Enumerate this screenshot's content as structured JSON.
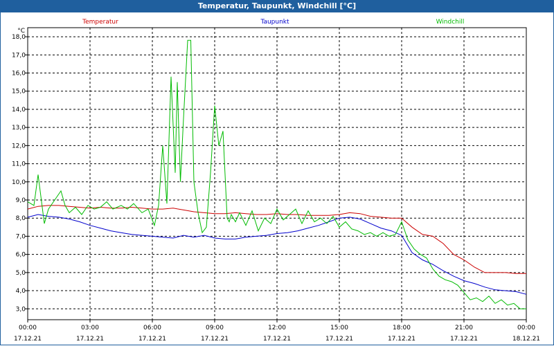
{
  "window_title": "Temperatur, Taupunkt, Windchill [°C]",
  "chart_data": {
    "type": "line",
    "title": "Temperatur, Taupunkt, Windchill [°C]",
    "ylabel": "°C",
    "xlabel": "",
    "ylim": [
      2.4,
      18.5
    ],
    "xlim": [
      0,
      24
    ],
    "grid": true,
    "y_ticks": [
      3,
      4,
      5,
      6,
      7,
      8,
      9,
      10,
      11,
      12,
      13,
      14,
      15,
      16,
      17,
      18
    ],
    "y_tick_labels": [
      "3,0",
      "4,0",
      "5,0",
      "6,0",
      "7,0",
      "8,0",
      "9,0",
      "10,0",
      "11,0",
      "12,0",
      "13,0",
      "14,0",
      "15,0",
      "16,0",
      "17,0",
      "18,0"
    ],
    "x_ticks": [
      0,
      3,
      6,
      9,
      12,
      15,
      18,
      21,
      24
    ],
    "x_tick_times": [
      "00:00",
      "03:00",
      "06:00",
      "09:00",
      "12:00",
      "15:00",
      "18:00",
      "21:00",
      "00:00"
    ],
    "x_tick_dates": [
      "17.12.21",
      "17.12.21",
      "17.12.21",
      "17.12.21",
      "17.12.21",
      "17.12.21",
      "17.12.21",
      "17.12.21",
      "18.12.21"
    ],
    "series": [
      {
        "name": "Temperatur",
        "color": "#cc0000",
        "x": [
          0,
          0.5,
          1,
          1.5,
          2,
          2.5,
          3,
          3.5,
          4,
          4.5,
          5,
          5.5,
          6,
          6.5,
          7,
          7.5,
          8,
          8.5,
          9,
          9.5,
          10,
          10.5,
          11,
          11.5,
          12,
          12.5,
          13,
          13.5,
          14,
          14.5,
          15,
          15.5,
          16,
          16.5,
          17,
          17.5,
          18,
          18.5,
          19,
          19.5,
          20,
          20.5,
          21,
          21.5,
          22,
          22.5,
          23,
          23.5,
          24
        ],
        "values": [
          8.5,
          8.65,
          8.7,
          8.7,
          8.65,
          8.6,
          8.55,
          8.6,
          8.55,
          8.55,
          8.6,
          8.55,
          8.5,
          8.5,
          8.55,
          8.45,
          8.35,
          8.3,
          8.25,
          8.25,
          8.3,
          8.25,
          8.2,
          8.2,
          8.25,
          8.2,
          8.2,
          8.15,
          8.15,
          8.15,
          8.2,
          8.3,
          8.25,
          8.1,
          8.05,
          8.0,
          8.0,
          7.5,
          7.1,
          7.0,
          6.6,
          6.0,
          5.7,
          5.3,
          5.0,
          5.0,
          5.0,
          4.95,
          4.95
        ]
      },
      {
        "name": "Taupunkt",
        "color": "#0000cc",
        "x": [
          0,
          0.5,
          1,
          1.5,
          2,
          2.5,
          3,
          3.5,
          4,
          4.5,
          5,
          5.5,
          6,
          6.5,
          7,
          7.5,
          8,
          8.5,
          9,
          9.5,
          10,
          10.5,
          11,
          11.5,
          12,
          12.5,
          13,
          13.5,
          14,
          14.5,
          15,
          15.5,
          16,
          16.5,
          17,
          17.5,
          18,
          18.5,
          19,
          19.5,
          20,
          20.5,
          21,
          21.5,
          22,
          22.5,
          23,
          23.5,
          24
        ],
        "values": [
          8.05,
          8.2,
          8.1,
          8.05,
          7.95,
          7.8,
          7.6,
          7.45,
          7.3,
          7.2,
          7.1,
          7.05,
          7.0,
          6.95,
          6.9,
          7.05,
          6.95,
          7.05,
          6.9,
          6.85,
          6.85,
          6.95,
          7.0,
          7.05,
          7.15,
          7.2,
          7.3,
          7.45,
          7.6,
          7.8,
          8.0,
          8.05,
          7.95,
          7.7,
          7.45,
          7.3,
          7.05,
          6.1,
          5.7,
          5.45,
          5.1,
          4.8,
          4.55,
          4.4,
          4.2,
          4.05,
          4.0,
          3.95,
          3.8
        ]
      },
      {
        "name": "Windchill",
        "color": "#00bb00",
        "x": [
          0,
          0.3,
          0.5,
          0.8,
          1.0,
          1.3,
          1.6,
          1.8,
          2.0,
          2.3,
          2.6,
          2.9,
          3.2,
          3.5,
          3.8,
          4.1,
          4.5,
          4.8,
          5.1,
          5.5,
          5.8,
          6.1,
          6.3,
          6.5,
          6.7,
          6.9,
          7.1,
          7.2,
          7.35,
          7.5,
          7.7,
          7.85,
          8.0,
          8.2,
          8.4,
          8.6,
          8.8,
          9.0,
          9.2,
          9.4,
          9.6,
          9.7,
          9.8,
          9.9,
          10.0,
          10.2,
          10.5,
          10.8,
          11.1,
          11.4,
          11.7,
          12.0,
          12.3,
          12.6,
          12.9,
          13.2,
          13.5,
          13.8,
          14.1,
          14.4,
          14.7,
          15.0,
          15.3,
          15.6,
          15.9,
          16.2,
          16.5,
          16.8,
          17.1,
          17.4,
          17.7,
          18.0,
          18.3,
          18.6,
          18.9,
          19.2,
          19.5,
          19.8,
          20.1,
          20.4,
          20.7,
          21.0,
          21.3,
          21.6,
          21.9,
          22.2,
          22.5,
          22.8,
          23.1,
          23.4,
          23.7,
          24.0
        ],
        "values": [
          8.9,
          8.7,
          10.4,
          7.7,
          8.5,
          9.0,
          9.5,
          8.7,
          8.3,
          8.6,
          8.2,
          8.7,
          8.5,
          8.6,
          8.9,
          8.5,
          8.7,
          8.5,
          8.8,
          8.3,
          8.5,
          7.6,
          8.7,
          12.0,
          8.8,
          15.8,
          10.5,
          15.5,
          10.0,
          13.5,
          17.8,
          17.8,
          10.0,
          8.3,
          7.2,
          7.5,
          10.5,
          14.2,
          12.0,
          12.8,
          8.0,
          7.8,
          8.2,
          8.0,
          7.8,
          8.3,
          7.6,
          8.4,
          7.3,
          8.0,
          7.7,
          8.5,
          7.9,
          8.2,
          8.5,
          7.7,
          8.4,
          7.8,
          8.0,
          7.7,
          8.1,
          7.5,
          7.8,
          7.4,
          7.3,
          7.1,
          7.2,
          7.0,
          7.2,
          7.0,
          7.1,
          7.8,
          6.8,
          6.3,
          6.0,
          5.8,
          5.2,
          4.8,
          4.6,
          4.5,
          4.3,
          3.9,
          3.5,
          3.6,
          3.4,
          3.7,
          3.3,
          3.5,
          3.2,
          3.3,
          3.0,
          3.0
        ]
      }
    ]
  }
}
